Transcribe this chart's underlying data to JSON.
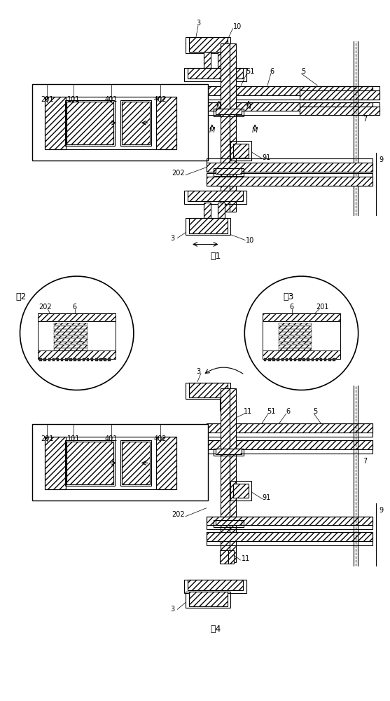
{
  "fig_width": 5.57,
  "fig_height": 10.0,
  "dpi": 100,
  "bg_color": "#ffffff",
  "line_color": "#000000",
  "fig_labels": [
    "图1",
    "图2",
    "图3",
    "图4"
  ],
  "part_labels_fig1": [
    "3",
    "10",
    "51",
    "6",
    "5",
    "201",
    "101",
    "401",
    "402",
    "7",
    "9",
    "91",
    "202",
    "N",
    "N",
    "M",
    "M"
  ],
  "part_labels_fig4": [
    "3",
    "11",
    "51",
    "6",
    "5",
    "201",
    "101",
    "401",
    "402",
    "7",
    "9",
    "91",
    "202",
    "11",
    "3"
  ]
}
